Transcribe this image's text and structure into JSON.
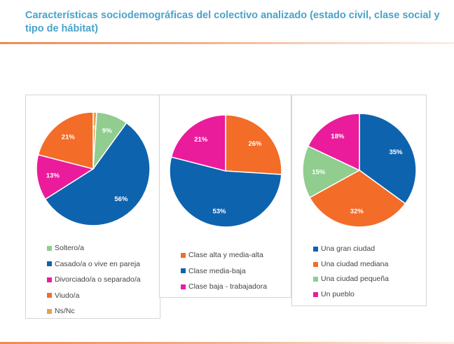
{
  "title": "Características sociodemográficas del colectivo analizado (estado civil, clase social y tipo de hábitat)",
  "chart_data": [
    {
      "type": "pie",
      "title": "",
      "series": [
        {
          "label": "Soltero/a",
          "value": 9,
          "color": "#90cd8f"
        },
        {
          "label": "Casado/a o vive en pareja",
          "value": 56,
          "color": "#0e63ae"
        },
        {
          "label": "Divorciado/a o separado/a",
          "value": 13,
          "color": "#ea1c9c"
        },
        {
          "label": "Viudo/a",
          "value": 21,
          "color": "#f36c28"
        },
        {
          "label": "Ns/Nc",
          "value": 1,
          "color": "#e9a04f"
        }
      ],
      "slice_order": [
        4,
        0,
        1,
        2,
        3
      ],
      "legend_position": "bottom"
    },
    {
      "type": "pie",
      "title": "",
      "series": [
        {
          "label": "Clase alta y media-alta",
          "value": 26,
          "color": "#f36c28"
        },
        {
          "label": "Clase media-baja",
          "value": 53,
          "color": "#0e63ae"
        },
        {
          "label": "Clase baja - trabajadora",
          "value": 21,
          "color": "#ea1c9c"
        }
      ],
      "slice_order": [
        0,
        1,
        2
      ],
      "legend_position": "bottom"
    },
    {
      "type": "pie",
      "title": "",
      "series": [
        {
          "label": "Una gran ciudad",
          "value": 35,
          "color": "#0e63ae"
        },
        {
          "label": "Una ciudad mediana",
          "value": 32,
          "color": "#f36c28"
        },
        {
          "label": "Una ciudad pequeña",
          "value": 15,
          "color": "#90cd8f"
        },
        {
          "label": "Un pueblo",
          "value": 18,
          "color": "#ea1c9c"
        }
      ],
      "slice_order": [
        0,
        1,
        2,
        3
      ],
      "legend_position": "bottom"
    }
  ]
}
